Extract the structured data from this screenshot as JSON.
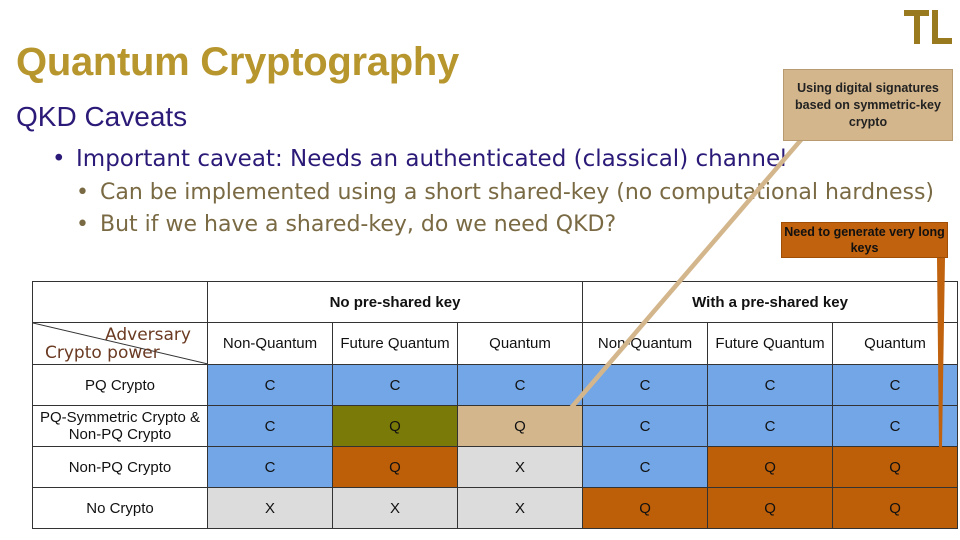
{
  "logo": {
    "icon": "tl-logo-icon",
    "color": "#9a7a1e"
  },
  "slide": {
    "title": "Quantum Cryptography",
    "subtitle": "QKD Caveats",
    "bullets": [
      "Important caveat: Needs an authenticated (classical) channel",
      "Can be implemented using a short shared-key (no computational hardness)",
      "But if we have a shared-key, do we need QKD?"
    ]
  },
  "table": {
    "group_headers": [
      "No pre-shared key",
      "With a pre-shared key"
    ],
    "corner": {
      "top": "Adversary",
      "bottom": "Crypto power"
    },
    "columns": [
      "Non-Quantum",
      "Future Quantum",
      "Quantum",
      "Non-Quantum",
      "Future Quantum",
      "Quantum"
    ],
    "rows": [
      {
        "label": "PQ Crypto",
        "cells": [
          "C",
          "C",
          "C",
          "C",
          "C",
          "C"
        ]
      },
      {
        "label": "PQ-Symmetric Crypto  &  Non-PQ  Crypto",
        "cells": [
          "C",
          "Q",
          "Q",
          "C",
          "C",
          "C"
        ]
      },
      {
        "label": "Non-PQ  Crypto",
        "cells": [
          "C",
          "Q",
          "X",
          "C",
          "Q",
          "Q"
        ]
      },
      {
        "label": "No Crypto",
        "cells": [
          "X",
          "X",
          "X",
          "Q",
          "Q",
          "Q"
        ]
      }
    ],
    "colors": {
      "blue": "#73a6e6",
      "olive": "#7a7a08",
      "tan": "#d4b68c",
      "gray": "#dcdcdc",
      "orange": "#bd5e08",
      "x": "#47c6e6"
    }
  },
  "callouts": {
    "signatures": "Using digital signatures based on symmetric-key crypto",
    "long_keys": "Need to generate very long keys"
  }
}
